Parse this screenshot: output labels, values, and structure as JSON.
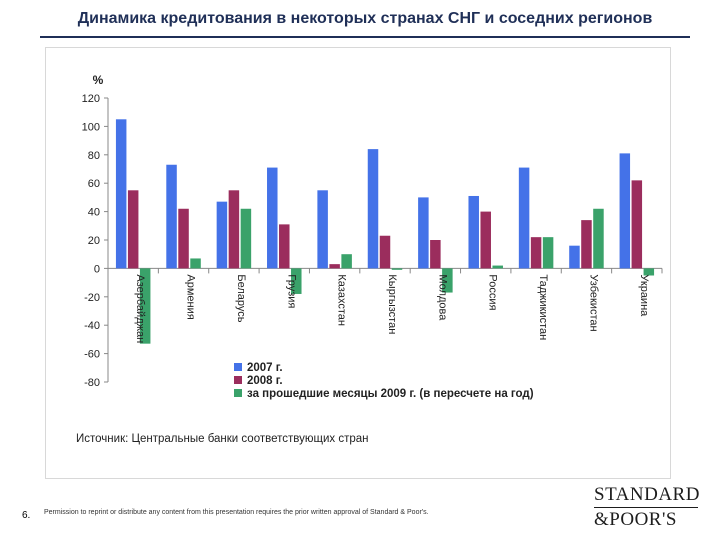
{
  "slide": {
    "title": "Динамика кредитования в некоторых странах СНГ и соседних регионов",
    "page_number": "6.",
    "permission_text": "Permission to reprint or distribute any content from this presentation requires the prior written approval of Standard & Poor's.",
    "logo": {
      "line1": "STANDARD",
      "line2": "&POOR'S"
    }
  },
  "colors": {
    "series_2007": "#4472e8",
    "series_2008": "#9b2d5d",
    "series_2009": "#3aa26a",
    "title": "#1f2f57"
  },
  "chart_data": {
    "type": "bar",
    "ylabel": "%",
    "ylim": [
      -80,
      120
    ],
    "yticks": [
      120,
      100,
      80,
      60,
      40,
      20,
      0,
      -20,
      -40,
      -60,
      -80
    ],
    "grid": false,
    "legend_position": "bottom",
    "categories": [
      "Азербайджан",
      "Армения",
      "Беларусь",
      "Грузия",
      "Казахстан",
      "Кыргызстан",
      "Молдова",
      "Россия",
      "Таджикистан",
      "Узбекистан",
      "Украина"
    ],
    "series": [
      {
        "name": "2007 г.",
        "values": [
          105,
          73,
          47,
          71,
          55,
          84,
          50,
          51,
          71,
          16,
          81
        ]
      },
      {
        "name": "2008 г.",
        "values": [
          55,
          42,
          55,
          31,
          3,
          23,
          20,
          40,
          22,
          34,
          62
        ]
      },
      {
        "name": "за прошедшие месяцы 2009 г. (в пересчете на год)",
        "values": [
          -53,
          7,
          42,
          -18,
          10,
          -1,
          -17,
          2,
          22,
          42,
          -5
        ]
      }
    ],
    "source": "Источник: Центральные банки соответствующих стран"
  }
}
